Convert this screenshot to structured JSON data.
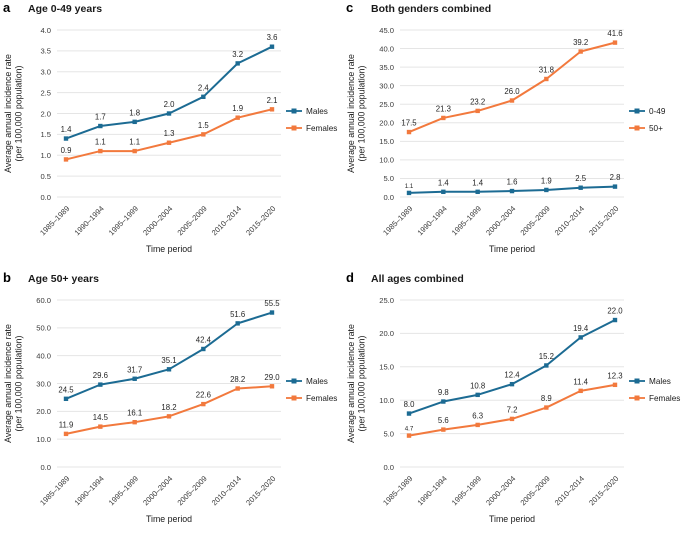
{
  "figure": {
    "background": "#ffffff"
  },
  "colors": {
    "teal": "#1c6b93",
    "orange": "#f2793d",
    "grid": "#e5e5e5",
    "tick_text": "#3a3a3a",
    "label_text": "#262626",
    "title_text": "#1a1a1a"
  },
  "shared": {
    "xlabel": "Time period",
    "ylabel_line1": "Average annual incidence rate",
    "ylabel_line2": "(per 100,000 population)",
    "categories": [
      "1985–1989",
      "1990–1994",
      "1995–1999",
      "2000–2004",
      "2005–2009",
      "2010–2014",
      "2015–2020"
    ]
  },
  "chart_data": [
    {
      "panel_label": "a",
      "title": "Age 0-49 years",
      "type": "line",
      "grid": true,
      "legend_position": "right",
      "xlabel": "Time period",
      "ylabel": "Average annual incidence rate (per 100,000 population)",
      "categories": [
        "1985–1989",
        "1990–1994",
        "1995–1999",
        "2000–2004",
        "2005–2009",
        "2010–2014",
        "2015–2020"
      ],
      "ylim": [
        0,
        4.0
      ],
      "ytick_step": 0.5,
      "series": [
        {
          "name": "Males",
          "color_key": "teal",
          "values": [
            1.4,
            1.7,
            1.8,
            2.0,
            2.4,
            3.2,
            3.6
          ]
        },
        {
          "name": "Females",
          "color_key": "orange",
          "values": [
            0.9,
            1.1,
            1.1,
            1.3,
            1.5,
            1.9,
            2.1
          ]
        }
      ],
      "small_labels": []
    },
    {
      "panel_label": "b",
      "title": "Age 50+ years",
      "type": "line",
      "grid": true,
      "legend_position": "right",
      "xlabel": "Time period",
      "ylabel": "Average annual incidence rate (per 100,000 population)",
      "categories": [
        "1985–1989",
        "1990–1994",
        "1995–1999",
        "2000–2004",
        "2005–2009",
        "2010–2014",
        "2015–2020"
      ],
      "ylim": [
        0,
        60.0
      ],
      "ytick_step": 10,
      "series": [
        {
          "name": "Males",
          "color_key": "teal",
          "values": [
            24.5,
            29.6,
            31.7,
            35.1,
            42.4,
            51.6,
            55.5
          ]
        },
        {
          "name": "Females",
          "color_key": "orange",
          "values": [
            11.9,
            14.5,
            16.1,
            18.2,
            22.6,
            28.2,
            29.0
          ]
        }
      ],
      "small_labels": []
    },
    {
      "panel_label": "c",
      "title": "Both genders combined",
      "type": "line",
      "grid": true,
      "legend_position": "right",
      "xlabel": "Time period",
      "ylabel": "Average annual incidence rate (per 100,000 population)",
      "categories": [
        "1985–1989",
        "1990–1994",
        "1995–1999",
        "2000–2004",
        "2005–2009",
        "2010–2014",
        "2015–2020"
      ],
      "ylim": [
        0,
        45.0
      ],
      "ytick_step": 5,
      "series": [
        {
          "name": "0-49",
          "color_key": "teal",
          "values": [
            1.1,
            1.4,
            1.4,
            1.6,
            1.9,
            2.5,
            2.8
          ]
        },
        {
          "name": "50+",
          "color_key": "orange",
          "values": [
            17.5,
            21.3,
            23.2,
            26.0,
            31.8,
            39.2,
            41.6
          ]
        }
      ],
      "small_labels": [
        [
          0,
          0
        ]
      ]
    },
    {
      "panel_label": "d",
      "title": "All ages combined",
      "type": "line",
      "grid": true,
      "legend_position": "right",
      "xlabel": "Time period",
      "ylabel": "Average annual incidence rate (per 100,000 population)",
      "categories": [
        "1985–1989",
        "1990–1994",
        "1995–1999",
        "2000–2004",
        "2005–2009",
        "2010–2014",
        "2015–2020"
      ],
      "ylim": [
        0,
        25.0
      ],
      "ytick_step": 5,
      "series": [
        {
          "name": "Males",
          "color_key": "teal",
          "values": [
            8.0,
            9.8,
            10.8,
            12.4,
            15.2,
            19.4,
            22.0
          ]
        },
        {
          "name": "Females",
          "color_key": "orange",
          "values": [
            4.7,
            5.6,
            6.3,
            7.2,
            8.9,
            11.4,
            12.3
          ]
        }
      ],
      "small_labels": [
        [
          1,
          0
        ]
      ]
    }
  ]
}
